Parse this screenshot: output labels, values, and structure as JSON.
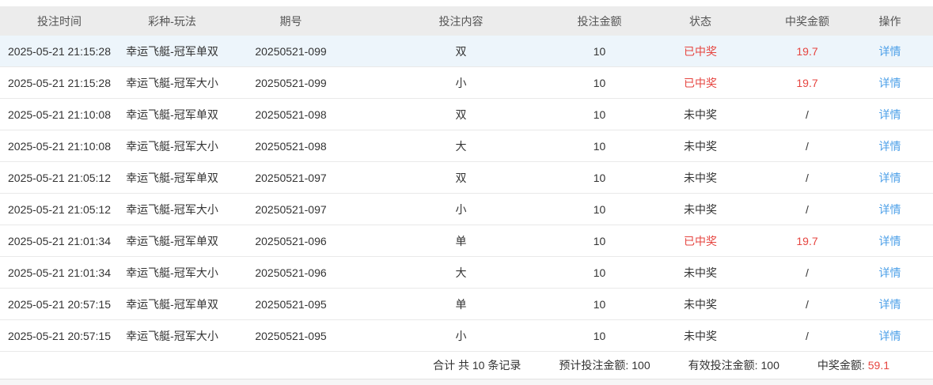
{
  "colors": {
    "header_bg": "#ececec",
    "header_text": "#555555",
    "body_text": "#333333",
    "win_red": "#e64540",
    "link_blue": "#4da0e8",
    "row_highlight_bg": "#edf5fb",
    "row_border": "#e9e9e9"
  },
  "table": {
    "columns": [
      {
        "key": "time",
        "label": "投注时间"
      },
      {
        "key": "game",
        "label": "彩种-玩法"
      },
      {
        "key": "period",
        "label": "期号"
      },
      {
        "key": "content",
        "label": "投注内容"
      },
      {
        "key": "amount",
        "label": "投注金额"
      },
      {
        "key": "status",
        "label": "状态"
      },
      {
        "key": "prize",
        "label": "中奖金额"
      },
      {
        "key": "action",
        "label": "操作"
      }
    ],
    "rows": [
      {
        "time": "2025-05-21 21:15:28",
        "game": "幸运飞艇-冠军单双",
        "period": "20250521-099",
        "content": "双",
        "amount": "10",
        "status": "已中奖",
        "won": true,
        "prize": "19.7",
        "action": "详情",
        "highlighted": true
      },
      {
        "time": "2025-05-21 21:15:28",
        "game": "幸运飞艇-冠军大小",
        "period": "20250521-099",
        "content": "小",
        "amount": "10",
        "status": "已中奖",
        "won": true,
        "prize": "19.7",
        "action": "详情",
        "highlighted": false
      },
      {
        "time": "2025-05-21 21:10:08",
        "game": "幸运飞艇-冠军单双",
        "period": "20250521-098",
        "content": "双",
        "amount": "10",
        "status": "未中奖",
        "won": false,
        "prize": "/",
        "action": "详情",
        "highlighted": false
      },
      {
        "time": "2025-05-21 21:10:08",
        "game": "幸运飞艇-冠军大小",
        "period": "20250521-098",
        "content": "大",
        "amount": "10",
        "status": "未中奖",
        "won": false,
        "prize": "/",
        "action": "详情",
        "highlighted": false
      },
      {
        "time": "2025-05-21 21:05:12",
        "game": "幸运飞艇-冠军单双",
        "period": "20250521-097",
        "content": "双",
        "amount": "10",
        "status": "未中奖",
        "won": false,
        "prize": "/",
        "action": "详情",
        "highlighted": false
      },
      {
        "time": "2025-05-21 21:05:12",
        "game": "幸运飞艇-冠军大小",
        "period": "20250521-097",
        "content": "小",
        "amount": "10",
        "status": "未中奖",
        "won": false,
        "prize": "/",
        "action": "详情",
        "highlighted": false
      },
      {
        "time": "2025-05-21 21:01:34",
        "game": "幸运飞艇-冠军单双",
        "period": "20250521-096",
        "content": "单",
        "amount": "10",
        "status": "已中奖",
        "won": true,
        "prize": "19.7",
        "action": "详情",
        "highlighted": false
      },
      {
        "time": "2025-05-21 21:01:34",
        "game": "幸运飞艇-冠军大小",
        "period": "20250521-096",
        "content": "大",
        "amount": "10",
        "status": "未中奖",
        "won": false,
        "prize": "/",
        "action": "详情",
        "highlighted": false
      },
      {
        "time": "2025-05-21 20:57:15",
        "game": "幸运飞艇-冠军单双",
        "period": "20250521-095",
        "content": "单",
        "amount": "10",
        "status": "未中奖",
        "won": false,
        "prize": "/",
        "action": "详情",
        "highlighted": false
      },
      {
        "time": "2025-05-21 20:57:15",
        "game": "幸运飞艇-冠军大小",
        "period": "20250521-095",
        "content": "小",
        "amount": "10",
        "status": "未中奖",
        "won": false,
        "prize": "/",
        "action": "详情",
        "highlighted": false
      }
    ]
  },
  "footer": {
    "total_label": "合计 共 10 条记录",
    "expected_label": "预计投注金额:",
    "expected_value": "100",
    "valid_label": "有效投注金额:",
    "valid_value": "100",
    "prize_label": "中奖金额:",
    "prize_value": "59.1"
  }
}
